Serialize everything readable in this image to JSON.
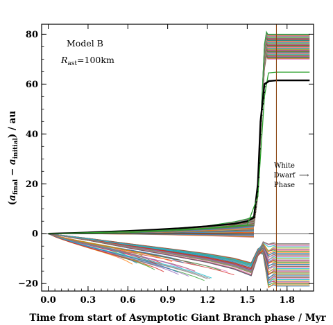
{
  "chart_data": {
    "type": "line",
    "title": "",
    "xlabel": "Time from start of Asymptotic Giant Branch phase / Myr",
    "ylabel": "(a_final − a_initial) / au",
    "ylabel_parts": {
      "open": "(",
      "a1": "a",
      "sub1": "final",
      "minus": " − ",
      "a2": "a",
      "sub2": "initial",
      "close": ") / au"
    },
    "xlim": [
      -0.05,
      2.0
    ],
    "ylim": [
      -23,
      84
    ],
    "x_ticks": [
      0.0,
      0.3,
      0.6,
      0.9,
      1.2,
      1.5,
      1.8
    ],
    "x_tick_labels": [
      "0.0",
      "0.3",
      "0.6",
      "0.9",
      "1.2",
      "1.5",
      "1.8"
    ],
    "y_ticks": [
      -20,
      0,
      20,
      40,
      60,
      80
    ],
    "y_tick_labels": [
      "−20",
      "0",
      "20",
      "40",
      "60",
      "80"
    ],
    "annotations": {
      "model": "Model B",
      "radius_symbol": "R",
      "radius_sub": "ast",
      "radius_value": "=100km",
      "wd_line1": "White",
      "wd_line2": "Dwarf",
      "wd_line3": "Phase",
      "wd_arrow": "⟶"
    },
    "reference_lines": {
      "zero_line": 0,
      "white_dwarf_start_x": 1.72
    },
    "series": [
      {
        "color": "#000000",
        "x": [
          0,
          0.2,
          0.4,
          0.6,
          0.8,
          1.0,
          1.2,
          1.4,
          1.5,
          1.55,
          1.58,
          1.6,
          1.63,
          1.66,
          1.72,
          1.97
        ],
        "values": [
          0,
          0.3,
          0.7,
          1.1,
          1.6,
          2.2,
          3.0,
          4.0,
          5.0,
          6.5,
          20,
          45,
          60,
          61.2,
          61.5,
          61.5
        ]
      },
      {
        "color": "#2ca02c",
        "x": [
          0,
          0.4,
          0.8,
          1.2,
          1.5,
          1.58,
          1.63,
          1.66,
          1.72,
          1.97
        ],
        "values": [
          0,
          0.5,
          1.2,
          2.2,
          3.5,
          15,
          55,
          64.5,
          64.8,
          64.8
        ]
      }
    ],
    "bundle_upper": {
      "count": 44,
      "final_min": 70,
      "final_max": 80,
      "colors": [
        "#e377c2",
        "#ff7f0e",
        "#1f77b4",
        "#2ca02c",
        "#d62728",
        "#9467bd",
        "#8c564b",
        "#bcbd22",
        "#17becf",
        "#7f7f7f"
      ]
    },
    "bundle_lower": {
      "count": 40,
      "final_min": -21,
      "final_max": -4,
      "colors": [
        "#1f77b4",
        "#ff7f0e",
        "#2ca02c",
        "#d62728",
        "#9467bd",
        "#bcbd22",
        "#17becf",
        "#e377c2",
        "#8c564b",
        "#7f7f7f"
      ]
    }
  }
}
